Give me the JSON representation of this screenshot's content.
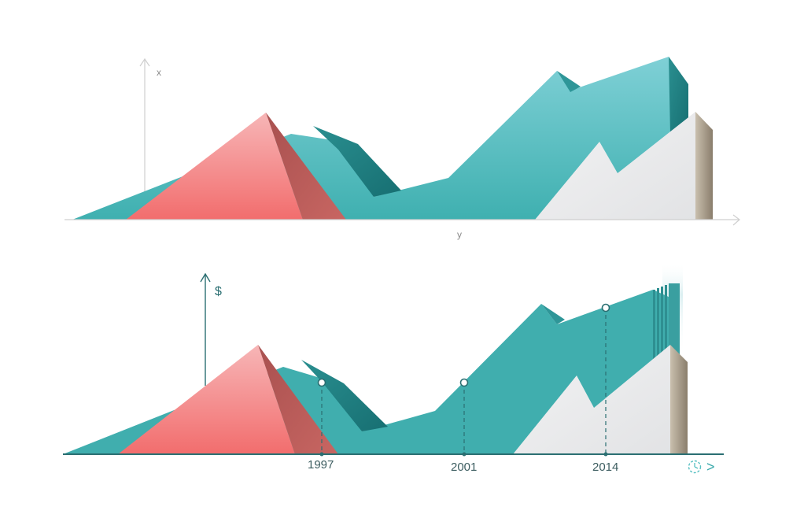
{
  "chart_data": [
    {
      "type": "area",
      "panel": "top",
      "xlabel": "y",
      "ylabel": "x",
      "series": [
        {
          "values": [
            0,
            0.2,
            0.95,
            0.8,
            0.2,
            0.35,
            1.5,
            1.3,
            1.7
          ]
        },
        {
          "values": [
            0,
            1.0,
            0
          ]
        },
        {
          "values": [
            0,
            0.8,
            0.45,
            1.1,
            0.5
          ]
        }
      ],
      "colors": {
        "teal": "#4fb7b8",
        "red": "#f57c7c",
        "grey": "#e9e9ea",
        "axis": "#cfcfcf"
      }
    },
    {
      "type": "area",
      "panel": "bottom",
      "ylabel": "$",
      "markers": [
        {
          "label": "1997"
        },
        {
          "label": "2001"
        },
        {
          "label": "2014"
        }
      ],
      "colors": {
        "teal": "#40aeae",
        "red": "#f77a78",
        "grey": "#ececec",
        "axis": "#2b6f72"
      }
    }
  ],
  "ui": {
    "clock_icon": "clock-icon",
    "next_arrow": ">"
  }
}
